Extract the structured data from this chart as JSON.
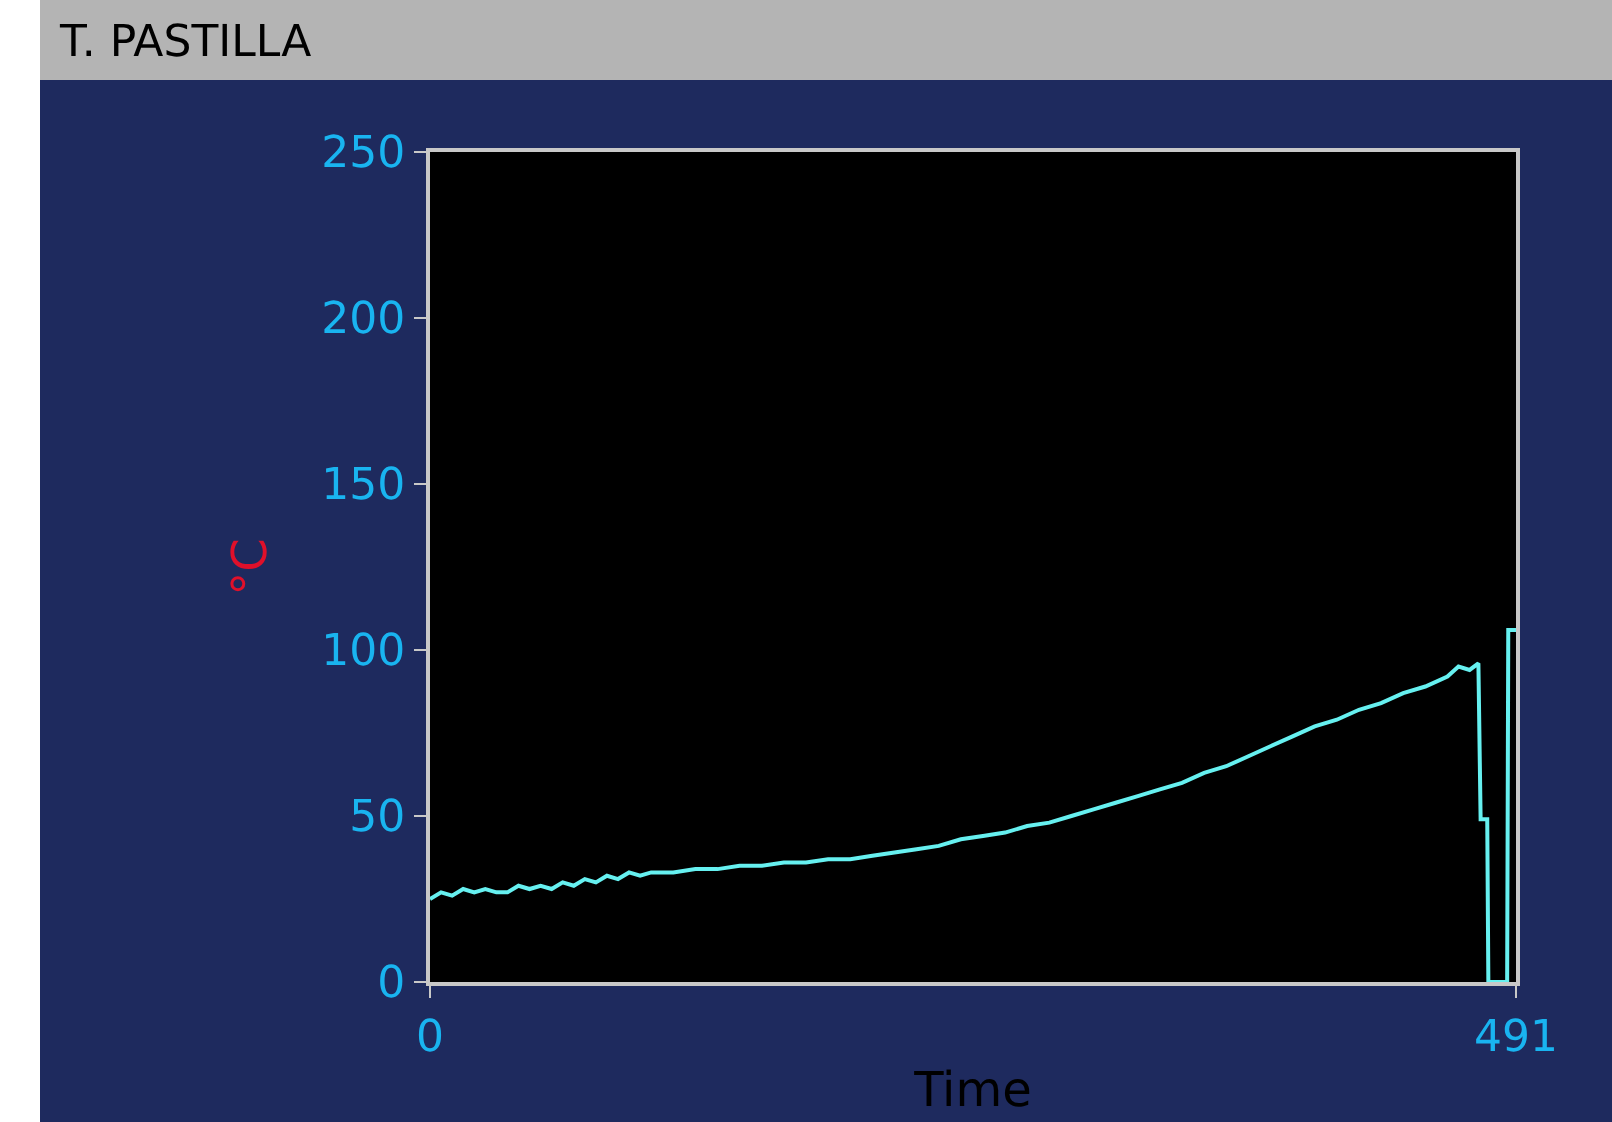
{
  "chart_data": {
    "type": "line",
    "title": "T. PASTILLA",
    "xlabel": "Time",
    "ylabel": "°C",
    "xlim": [
      0,
      491
    ],
    "xticks": [
      0,
      491
    ],
    "ylim": [
      0,
      250
    ],
    "yticks": [
      0,
      50,
      100,
      150,
      200,
      250
    ],
    "grid": false,
    "marker": "none",
    "line_style": "solid",
    "series": [
      {
        "color": "#66f0f0",
        "x": [
          0,
          5,
          10,
          15,
          20,
          25,
          30,
          35,
          40,
          45,
          50,
          55,
          60,
          65,
          70,
          75,
          80,
          85,
          90,
          95,
          100,
          110,
          120,
          130,
          140,
          150,
          160,
          170,
          180,
          190,
          200,
          210,
          220,
          230,
          240,
          250,
          260,
          270,
          280,
          290,
          300,
          310,
          320,
          330,
          340,
          350,
          360,
          370,
          380,
          390,
          400,
          410,
          420,
          430,
          440,
          450,
          460,
          465,
          470,
          474,
          475,
          478,
          478.5,
          487,
          487.5,
          491
        ],
        "values": [
          25,
          27,
          26,
          28,
          27,
          28,
          27,
          27,
          29,
          28,
          29,
          28,
          30,
          29,
          31,
          30,
          32,
          31,
          33,
          32,
          33,
          33,
          34,
          34,
          35,
          35,
          36,
          36,
          37,
          37,
          38,
          39,
          40,
          41,
          43,
          44,
          45,
          47,
          48,
          50,
          52,
          54,
          56,
          58,
          60,
          63,
          65,
          68,
          71,
          74,
          77,
          79,
          82,
          84,
          87,
          89,
          92,
          95,
          94,
          96,
          49,
          49,
          0,
          0,
          106,
          106
        ]
      }
    ]
  }
}
